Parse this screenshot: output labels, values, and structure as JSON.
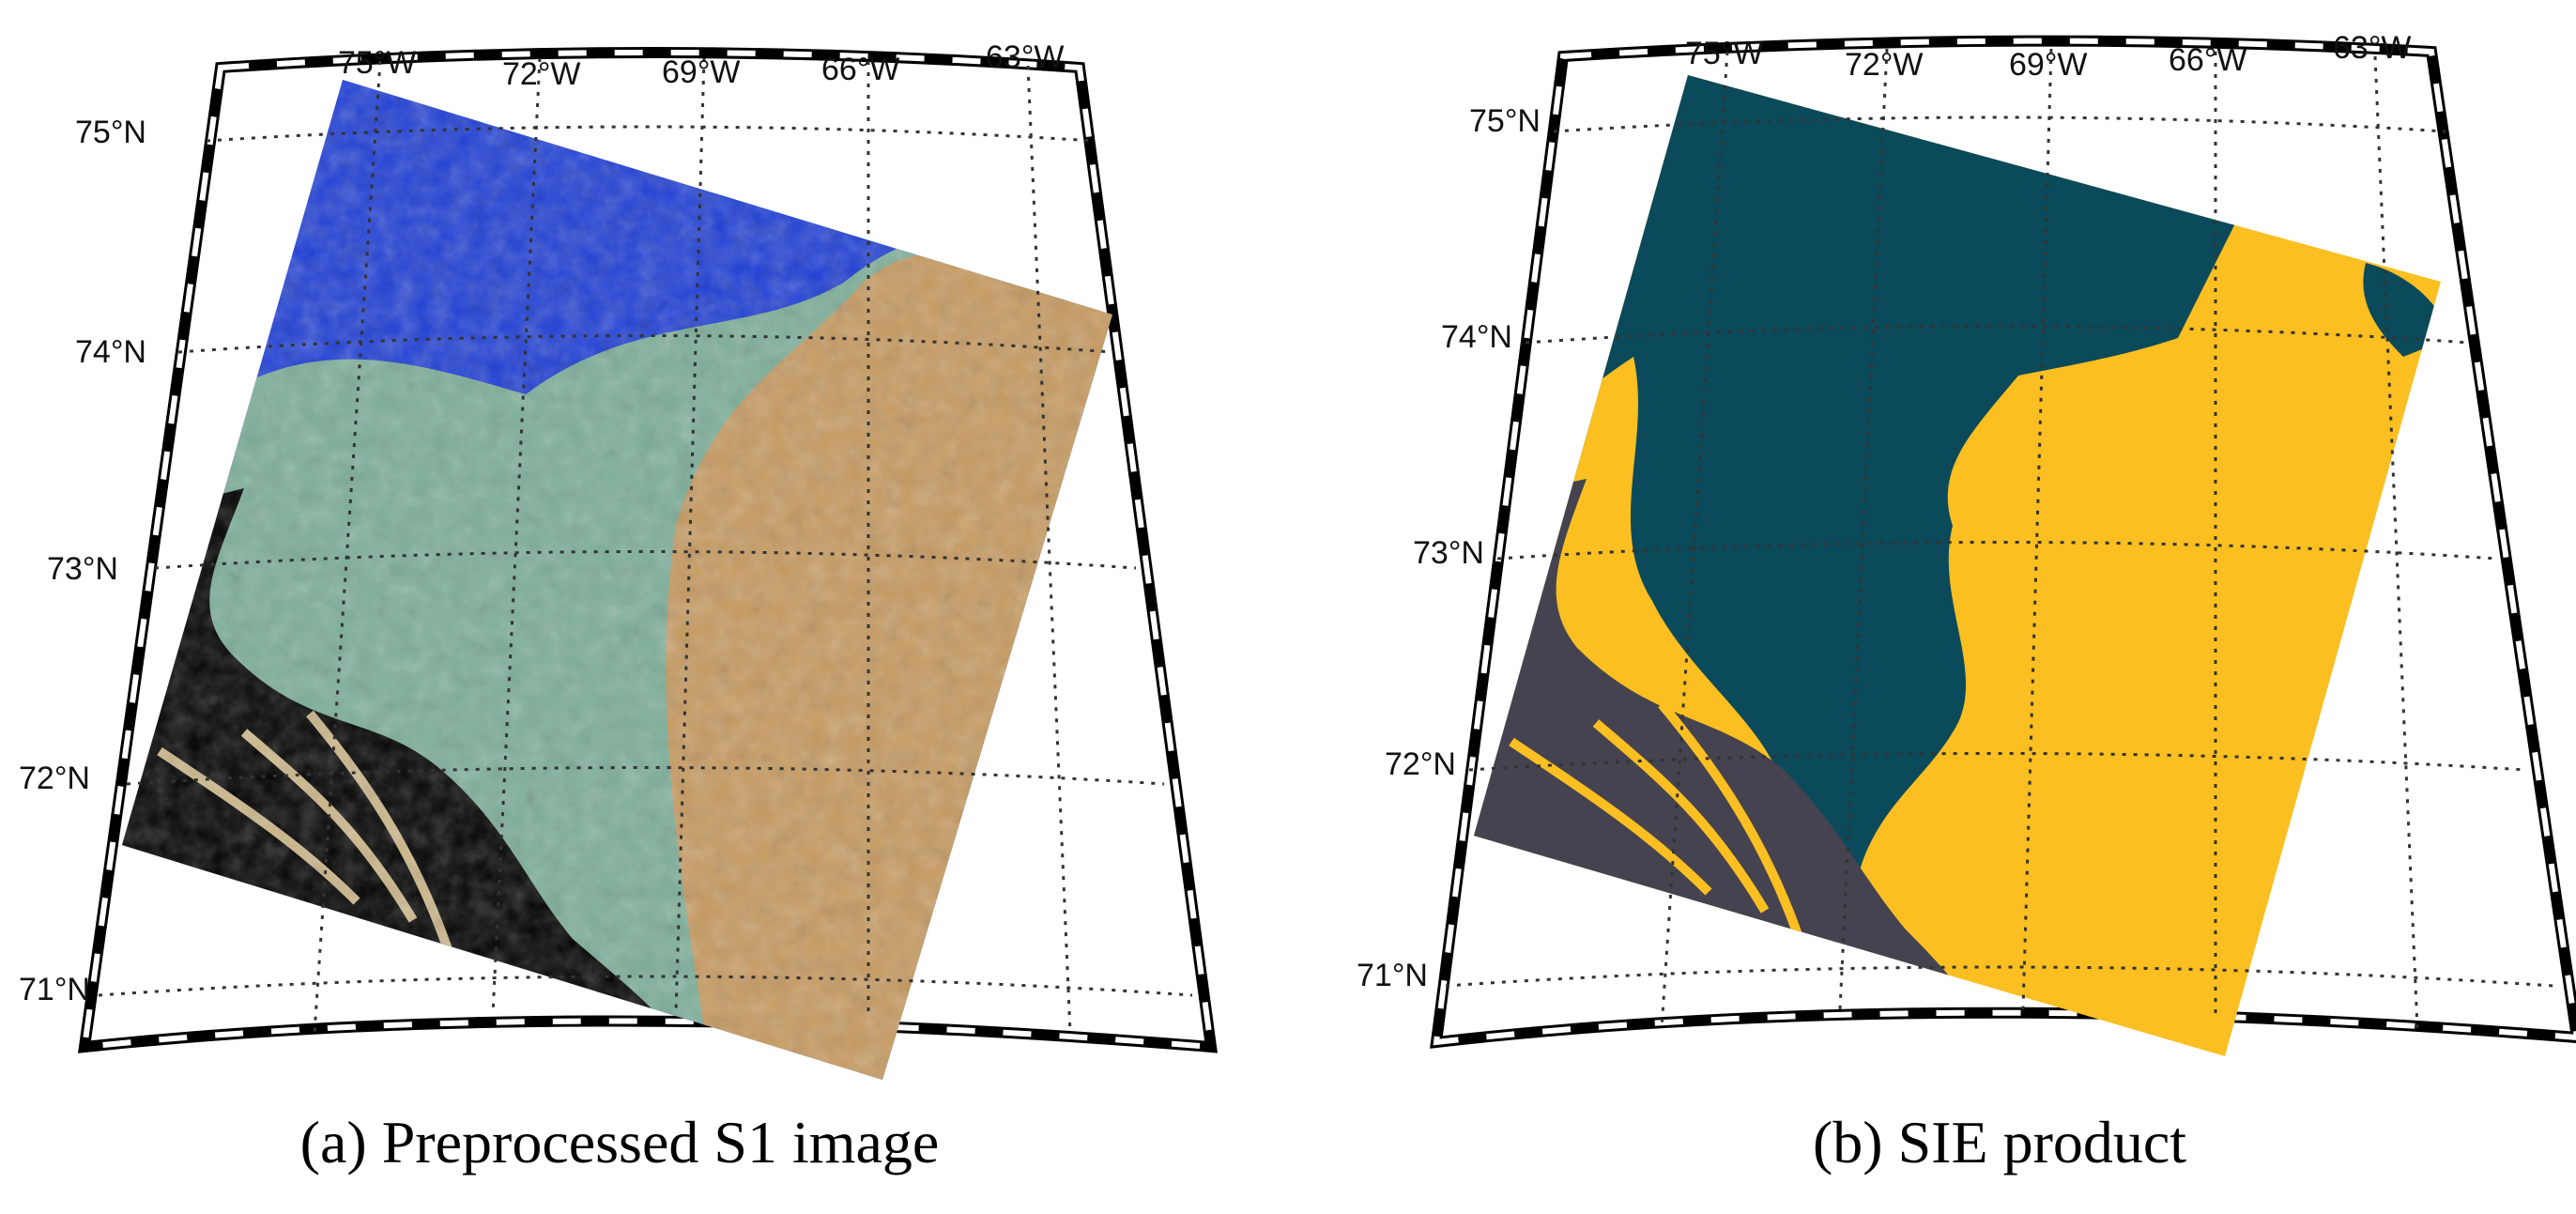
{
  "panels": [
    {
      "caption": "(a) Preprocessed S1 image",
      "lon_labels": [
        "75°W",
        "72°W",
        "69°W",
        "66°W",
        "63°W"
      ],
      "lat_labels": [
        "75°N",
        "74°N",
        "73°N",
        "72°N",
        "71°N"
      ],
      "colors": {
        "open_water": "#1f3fd6",
        "ice": "#c79a5f",
        "land": "#000000",
        "coastal_ice": "#7cae98"
      }
    },
    {
      "caption": "(b) SIE product",
      "lon_labels": [
        "75°W",
        "72°W",
        "69°W",
        "66°W",
        "63°W"
      ],
      "lat_labels": [
        "75°N",
        "74°N",
        "73°N",
        "72°N",
        "71°N"
      ],
      "colors": {
        "open_water": "#0b4a5a",
        "ice": "#fbbf22",
        "land": "#45434f"
      }
    }
  ]
}
